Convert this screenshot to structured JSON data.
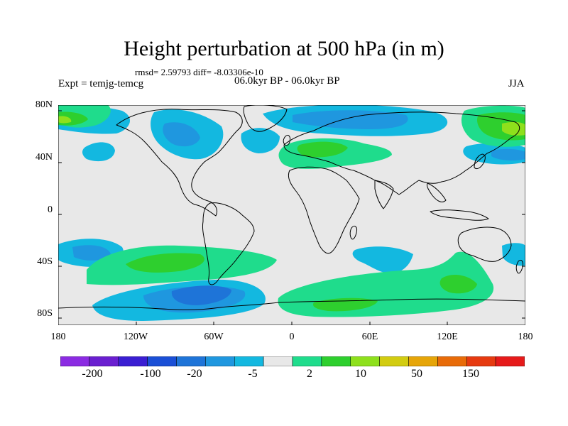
{
  "title": "Height perturbation at 500 hPa (in m)",
  "stats": "rmsd= 2.59793 diff= -8.03306e-10",
  "experiment": "Expt = temjg-temcg",
  "period": "06.0kyr BP - 06.0kyr BP",
  "season": "JJA",
  "lat_labels": [
    "80N",
    "40N",
    "0",
    "40S",
    "80S"
  ],
  "lon_labels": [
    "180",
    "120W",
    "60W",
    "0",
    "60E",
    "120E",
    "180"
  ],
  "colorbar": {
    "colors": [
      "#8b2be2",
      "#6a1fd0",
      "#3a1ed2",
      "#1a4fd6",
      "#1e74d8",
      "#1f97df",
      "#13b8e0",
      "#e8e8e8",
      "#1fdc8c",
      "#2ecf2e",
      "#8ee01c",
      "#d2cc10",
      "#e6a508",
      "#e86b08",
      "#e63a10",
      "#e61a1a"
    ],
    "tick_labels": [
      "-200",
      "-100",
      "-20",
      "-5",
      "2",
      "10",
      "50",
      "150"
    ]
  },
  "colors": {
    "background": "#e8e8e8",
    "neg_light": "#13b8e0",
    "neg_medium": "#1f97df",
    "neg_strong": "#1e74d8",
    "pos_light": "#1fdc8c",
    "pos_medium": "#2ecf2e",
    "pos_strong": "#8ee01c",
    "pos_peak": "#d2cc10"
  }
}
